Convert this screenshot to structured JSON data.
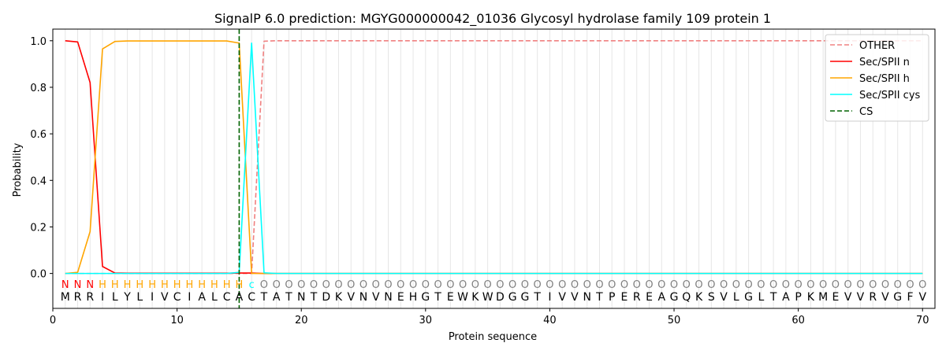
{
  "chart_data": {
    "type": "line",
    "title": "SignalP 6.0 prediction: MGYG000000042_01036 Glycosyl hydrolase family 109 protein 1",
    "xlabel": "Protein sequence",
    "ylabel": "Probability",
    "xlim": [
      0,
      71
    ],
    "ylim": [
      -0.15,
      1.05
    ],
    "xticks": [
      0,
      10,
      20,
      30,
      40,
      50,
      60,
      70
    ],
    "yticks": [
      0.0,
      0.2,
      0.4,
      0.6,
      0.8,
      1.0
    ],
    "ytick_labels": [
      "0.0",
      "0.2",
      "0.4",
      "0.6",
      "0.8",
      "1.0"
    ],
    "grid": "vertical lines at each residue",
    "legend_position": "top-right",
    "sequence": [
      "M",
      "R",
      "R",
      "I",
      "L",
      "Y",
      "L",
      "I",
      "V",
      "C",
      "I",
      "A",
      "L",
      "C",
      "A",
      "C",
      "T",
      "A",
      "T",
      "N",
      "T",
      "D",
      "K",
      "V",
      "N",
      "V",
      "N",
      "E",
      "H",
      "G",
      "T",
      "E",
      "W",
      "K",
      "W",
      "D",
      "G",
      "G",
      "T",
      "I",
      "V",
      "V",
      "N",
      "T",
      "P",
      "E",
      "R",
      "E",
      "A",
      "G",
      "Q",
      "K",
      "S",
      "V",
      "L",
      "G",
      "L",
      "T",
      "A",
      "P",
      "K",
      "M",
      "E",
      "V",
      "V",
      "R",
      "V",
      "G",
      "F",
      "V"
    ],
    "prediction": [
      "N",
      "N",
      "N",
      "H",
      "H",
      "H",
      "H",
      "H",
      "H",
      "H",
      "H",
      "H",
      "H",
      "H",
      "H",
      "c",
      "O",
      "O",
      "O",
      "O",
      "O",
      "O",
      "O",
      "O",
      "O",
      "O",
      "O",
      "O",
      "O",
      "O",
      "O",
      "O",
      "O",
      "O",
      "O",
      "O",
      "O",
      "O",
      "O",
      "O",
      "O",
      "O",
      "O",
      "O",
      "O",
      "O",
      "O",
      "O",
      "O",
      "O",
      "O",
      "O",
      "O",
      "O",
      "O",
      "O",
      "O",
      "O",
      "O",
      "O",
      "O",
      "O",
      "O",
      "O",
      "O",
      "O",
      "O",
      "O",
      "O",
      "O"
    ],
    "prediction_colors": {
      "N": "#ff0000",
      "H": "#ffa500",
      "c": "#00ffff",
      "O": "#808080"
    },
    "series": [
      {
        "name": "OTHER",
        "color": "#f08080",
        "dash": "dashed",
        "values": [
          0,
          0,
          0,
          0,
          0,
          0,
          0,
          0,
          0,
          0,
          0,
          0,
          0,
          0,
          0,
          0,
          0.998,
          1,
          1,
          1,
          1,
          1,
          1,
          1,
          1,
          1,
          1,
          1,
          1,
          1,
          1,
          1,
          1,
          1,
          1,
          1,
          1,
          1,
          1,
          1,
          1,
          1,
          1,
          1,
          1,
          1,
          1,
          1,
          1,
          1,
          1,
          1,
          1,
          1,
          1,
          1,
          1,
          1,
          1,
          1,
          1,
          1,
          1,
          1,
          1,
          1,
          1,
          1,
          1,
          1
        ]
      },
      {
        "name": "Sec/SPII n",
        "color": "#ff0000",
        "dash": "solid",
        "values": [
          1.0,
          0.995,
          0.82,
          0.03,
          0.002,
          0.001,
          0.001,
          0.001,
          0.001,
          0.001,
          0.001,
          0.001,
          0.001,
          0.001,
          0.002,
          0.002,
          0,
          0,
          0,
          0,
          0,
          0,
          0,
          0,
          0,
          0,
          0,
          0,
          0,
          0,
          0,
          0,
          0,
          0,
          0,
          0,
          0,
          0,
          0,
          0,
          0,
          0,
          0,
          0,
          0,
          0,
          0,
          0,
          0,
          0,
          0,
          0,
          0,
          0,
          0,
          0,
          0,
          0,
          0,
          0,
          0,
          0,
          0,
          0,
          0,
          0,
          0,
          0,
          0,
          0
        ]
      },
      {
        "name": "Sec/SPII h",
        "color": "#ffa500",
        "dash": "solid",
        "values": [
          0,
          0.005,
          0.18,
          0.965,
          0.997,
          0.999,
          0.999,
          0.999,
          0.999,
          0.999,
          0.999,
          0.999,
          0.999,
          0.999,
          0.99,
          0.0,
          0.0,
          0,
          0,
          0,
          0,
          0,
          0,
          0,
          0,
          0,
          0,
          0,
          0,
          0,
          0,
          0,
          0,
          0,
          0,
          0,
          0,
          0,
          0,
          0,
          0,
          0,
          0,
          0,
          0,
          0,
          0,
          0,
          0,
          0,
          0,
          0,
          0,
          0,
          0,
          0,
          0,
          0,
          0,
          0,
          0,
          0,
          0,
          0,
          0,
          0,
          0,
          0,
          0,
          0
        ]
      },
      {
        "name": "Sec/SPII cys",
        "color": "#00ffff",
        "dash": "solid",
        "values": [
          0,
          0,
          0,
          0,
          0,
          0,
          0,
          0,
          0,
          0,
          0,
          0,
          0,
          0,
          0.005,
          0.99,
          0.003,
          0,
          0,
          0,
          0,
          0,
          0,
          0,
          0,
          0,
          0,
          0,
          0,
          0,
          0,
          0,
          0,
          0,
          0,
          0,
          0,
          0,
          0,
          0,
          0,
          0,
          0,
          0,
          0,
          0,
          0,
          0,
          0,
          0,
          0,
          0,
          0,
          0,
          0,
          0,
          0,
          0,
          0,
          0,
          0,
          0,
          0,
          0,
          0,
          0,
          0,
          0,
          0,
          0
        ]
      }
    ],
    "cleavage_site": {
      "name": "CS",
      "x": 15,
      "color": "#006400",
      "dash": "dashed"
    }
  }
}
